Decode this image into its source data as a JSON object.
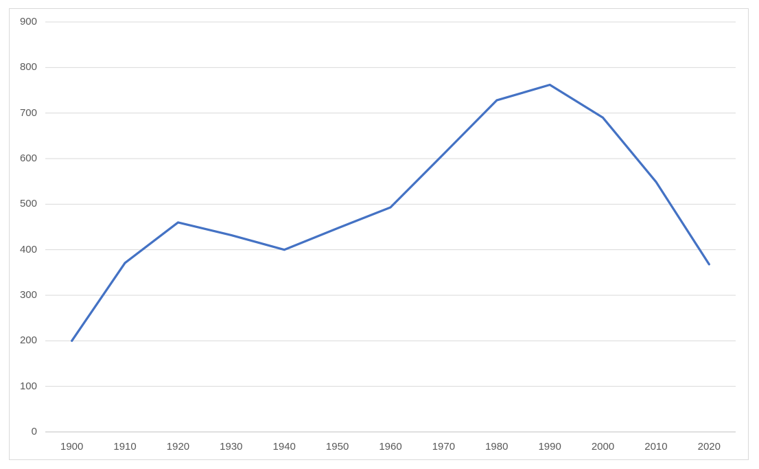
{
  "chart_data": {
    "type": "line",
    "title": "",
    "xlabel": "",
    "ylabel": "",
    "categories": [
      "1900",
      "1910",
      "1920",
      "1930",
      "1940",
      "1950",
      "1960",
      "1970",
      "1980",
      "1990",
      "2000",
      "2010",
      "2020"
    ],
    "series": [
      {
        "name": "",
        "values": [
          200,
          371,
          460,
          432,
          400,
          447,
          493,
          610,
          728,
          762,
          690,
          549,
          368
        ]
      }
    ],
    "ylim": [
      0,
      900
    ],
    "y_ticks": [
      0,
      100,
      200,
      300,
      400,
      500,
      600,
      700,
      800,
      900
    ],
    "grid": true,
    "legend_position": "none",
    "markers": false,
    "smooth": false,
    "colors": {
      "line": "#4472C4",
      "gridline": "#d9d9d9",
      "axis_line": "#bfbfbf",
      "tick_label": "#595959",
      "chart_border": "#d9d9d9",
      "background": "#ffffff"
    },
    "line_width": 3.25
  }
}
